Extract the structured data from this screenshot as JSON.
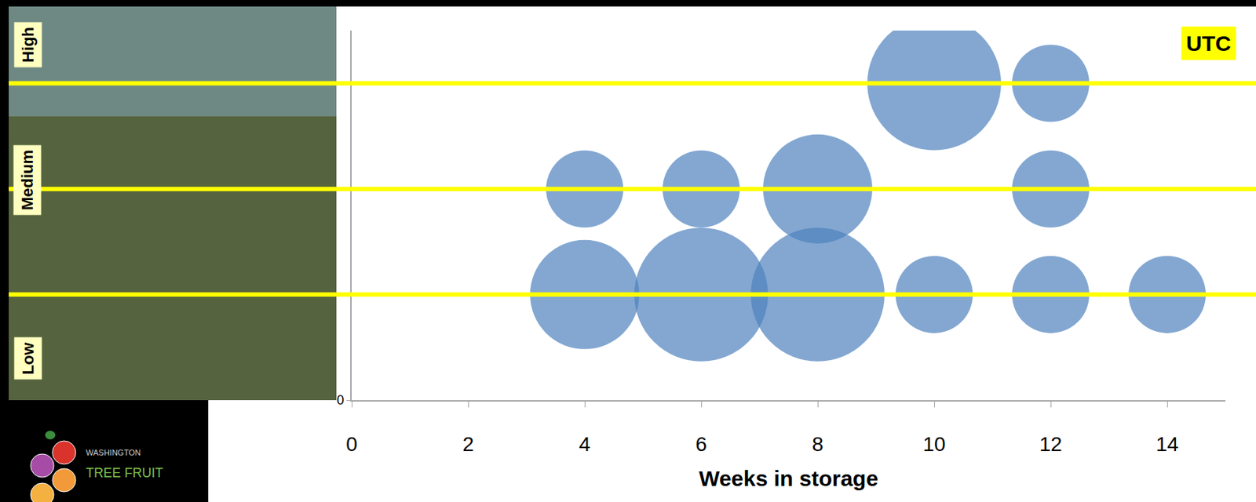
{
  "chart_data": {
    "type": "bubble",
    "x_label": "Weeks in storage",
    "xlim": [
      0,
      15
    ],
    "xticks": [
      0,
      2,
      4,
      6,
      8,
      10,
      12,
      14
    ],
    "ylim": [
      0,
      3.5
    ],
    "yticks": [
      0
    ],
    "rows": [
      {
        "label": "High",
        "value": 3
      },
      {
        "label": "Medium",
        "value": 2
      },
      {
        "label": "Low",
        "value": 1
      }
    ],
    "annotations": [
      "UTC"
    ],
    "grid": false,
    "series": [
      {
        "color": "#4f81bd",
        "x": [
          10,
          12,
          4,
          6,
          8,
          12,
          4,
          6,
          8,
          10,
          12,
          14
        ],
        "y": [
          3,
          3,
          2,
          2,
          2,
          2,
          1,
          1,
          1,
          1,
          1,
          1
        ],
        "size": [
          3,
          1,
          1,
          1,
          2,
          1,
          2,
          3,
          3,
          1,
          1,
          1
        ]
      }
    ]
  },
  "logo": {
    "lines": [
      "WASHINGTON",
      "TREE FRUIT"
    ]
  }
}
